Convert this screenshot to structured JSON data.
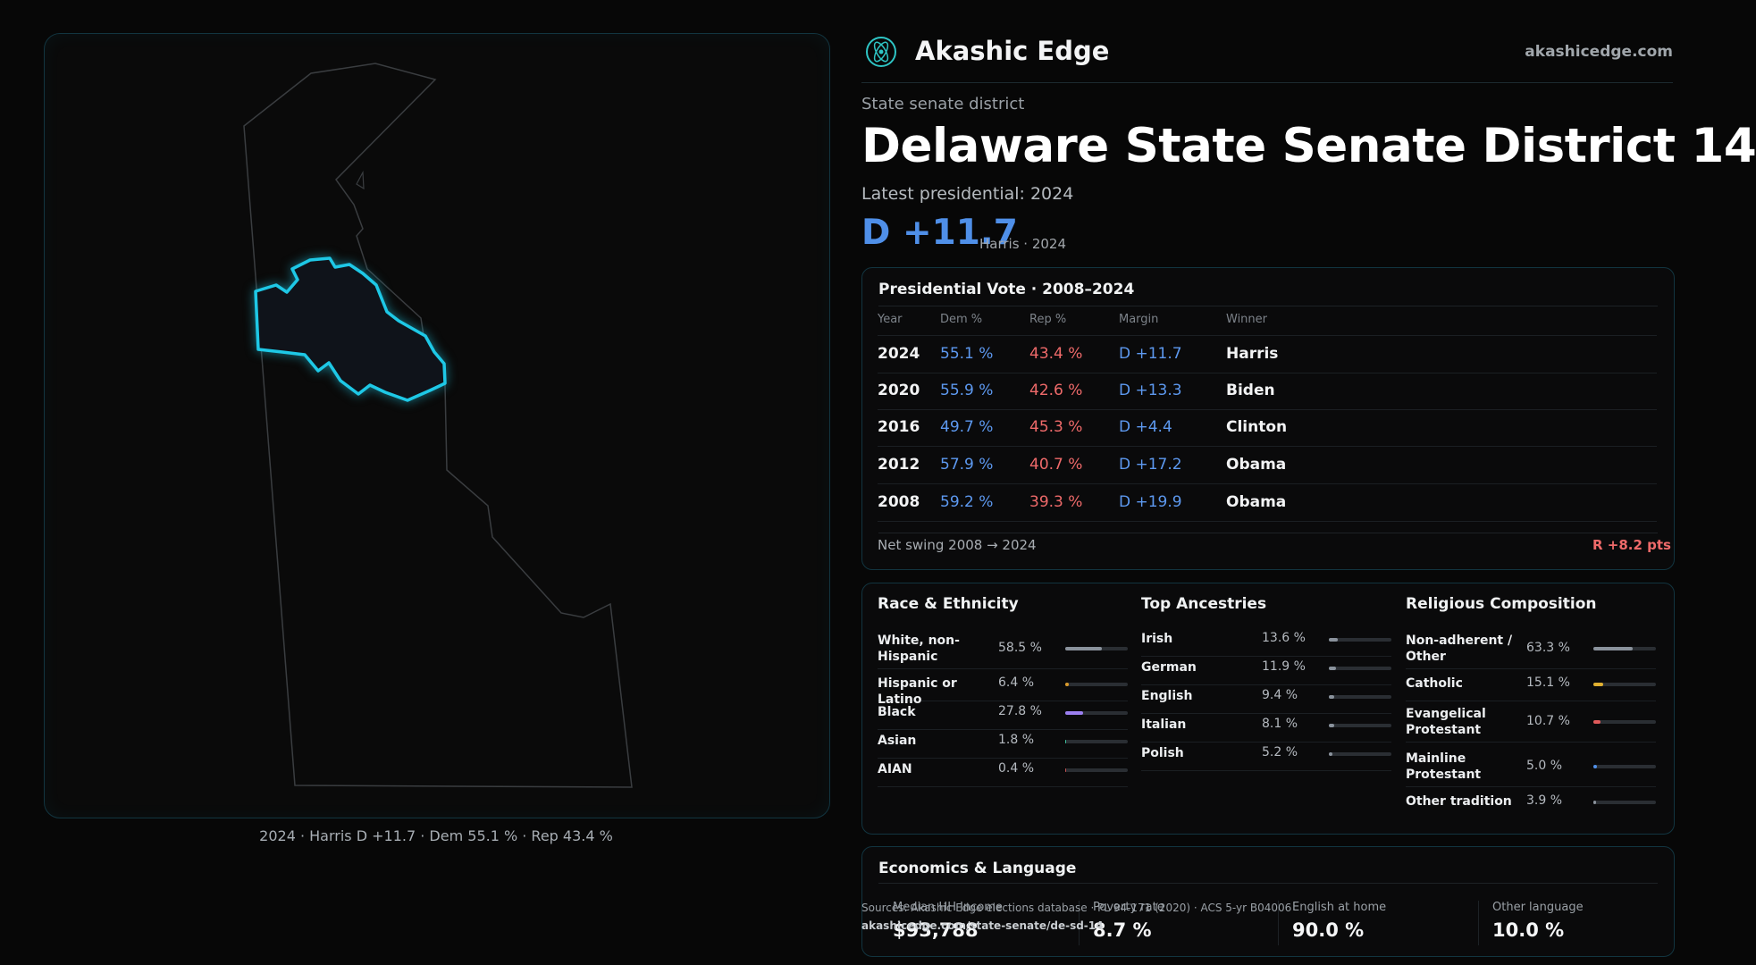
{
  "brand": {
    "name": "Akashic Edge",
    "site": "akashicedge.com",
    "logo_icon": "atom-logo-icon"
  },
  "kicker": "State senate district",
  "title": "Delaware State Senate District 14",
  "latest_label": "Latest presidential: 2024",
  "headline_margin": "D +11.7",
  "headline_sub": "Harris · 2024",
  "map_caption": "2024 · Harris D +11.7 · Dem 55.1 % · Rep 43.4 %",
  "presidential": {
    "title": "Presidential Vote · 2008–2024",
    "headers": [
      "Year",
      "Dem %",
      "Rep %",
      "Margin",
      "Winner"
    ],
    "rows": [
      {
        "year": "2024",
        "dem": "55.1 %",
        "rep": "43.4 %",
        "margin": "D +11.7",
        "winner": "Harris"
      },
      {
        "year": "2020",
        "dem": "55.9 %",
        "rep": "42.6 %",
        "margin": "D +13.3",
        "winner": "Biden"
      },
      {
        "year": "2016",
        "dem": "49.7 %",
        "rep": "45.3 %",
        "margin": "D +4.4",
        "winner": "Clinton"
      },
      {
        "year": "2012",
        "dem": "57.9 %",
        "rep": "40.7 %",
        "margin": "D +17.2",
        "winner": "Obama"
      },
      {
        "year": "2008",
        "dem": "59.2 %",
        "rep": "39.3 %",
        "margin": "D +19.9",
        "winner": "Obama"
      }
    ],
    "swing_label": "Net swing 2008 → 2024",
    "swing_value": "R +8.2 pts"
  },
  "race": {
    "title": "Race & Ethnicity",
    "items": [
      {
        "label": "White, non-Hispanic",
        "value": "58.5 %",
        "fraction": 0.585,
        "color": "#8a929c"
      },
      {
        "label": "Hispanic or Latino",
        "value": "6.4 %",
        "fraction": 0.064,
        "color": "#d99a2b"
      },
      {
        "label": "Black",
        "value": "27.8 %",
        "fraction": 0.278,
        "color": "#9b7ff0"
      },
      {
        "label": "Asian",
        "value": "1.8 %",
        "fraction": 0.018,
        "color": "#3fbf9f"
      },
      {
        "label": "AIAN",
        "value": "0.4 %",
        "fraction": 0.004,
        "color": "#c05050"
      }
    ]
  },
  "ancestry": {
    "title": "Top Ancestries",
    "items": [
      {
        "label": "Irish",
        "value": "13.6 %",
        "fraction": 0.136,
        "color": "#8a929c"
      },
      {
        "label": "German",
        "value": "11.9 %",
        "fraction": 0.119,
        "color": "#8a929c"
      },
      {
        "label": "English",
        "value": "9.4 %",
        "fraction": 0.094,
        "color": "#8a929c"
      },
      {
        "label": "Italian",
        "value": "8.1 %",
        "fraction": 0.081,
        "color": "#8a929c"
      },
      {
        "label": "Polish",
        "value": "5.2 %",
        "fraction": 0.052,
        "color": "#8a929c"
      }
    ]
  },
  "religion": {
    "title": "Religious Composition",
    "items": [
      {
        "label": "Non-adherent / Other",
        "value": "63.3 %",
        "fraction": 0.633,
        "color": "#8a929c"
      },
      {
        "label": "Catholic",
        "value": "15.1 %",
        "fraction": 0.151,
        "color": "#e0b030"
      },
      {
        "label": "Evangelical Protestant",
        "value": "10.7 %",
        "fraction": 0.107,
        "color": "#e05a5a"
      },
      {
        "label": "Mainline Protestant",
        "value": "5.0 %",
        "fraction": 0.05,
        "color": "#4f8fe8"
      },
      {
        "label": "Other tradition",
        "value": "3.9 %",
        "fraction": 0.039,
        "color": "#8a929c"
      }
    ]
  },
  "econ": {
    "title": "Economics & Language",
    "stats": [
      {
        "label": "Median HH Income",
        "value": "$93,788"
      },
      {
        "label": "Poverty rate",
        "value": "8.7 %"
      },
      {
        "label": "English at home",
        "value": "90.0 %"
      },
      {
        "label": "Other language",
        "value": "10.0 %"
      }
    ]
  },
  "sources": {
    "line1": "Sources: Akashic Edge elections database · PL 94-171 (2020) · ACS 5-yr B04006",
    "line2": "akashicedge.com/state-senate/de-sd-14"
  }
}
